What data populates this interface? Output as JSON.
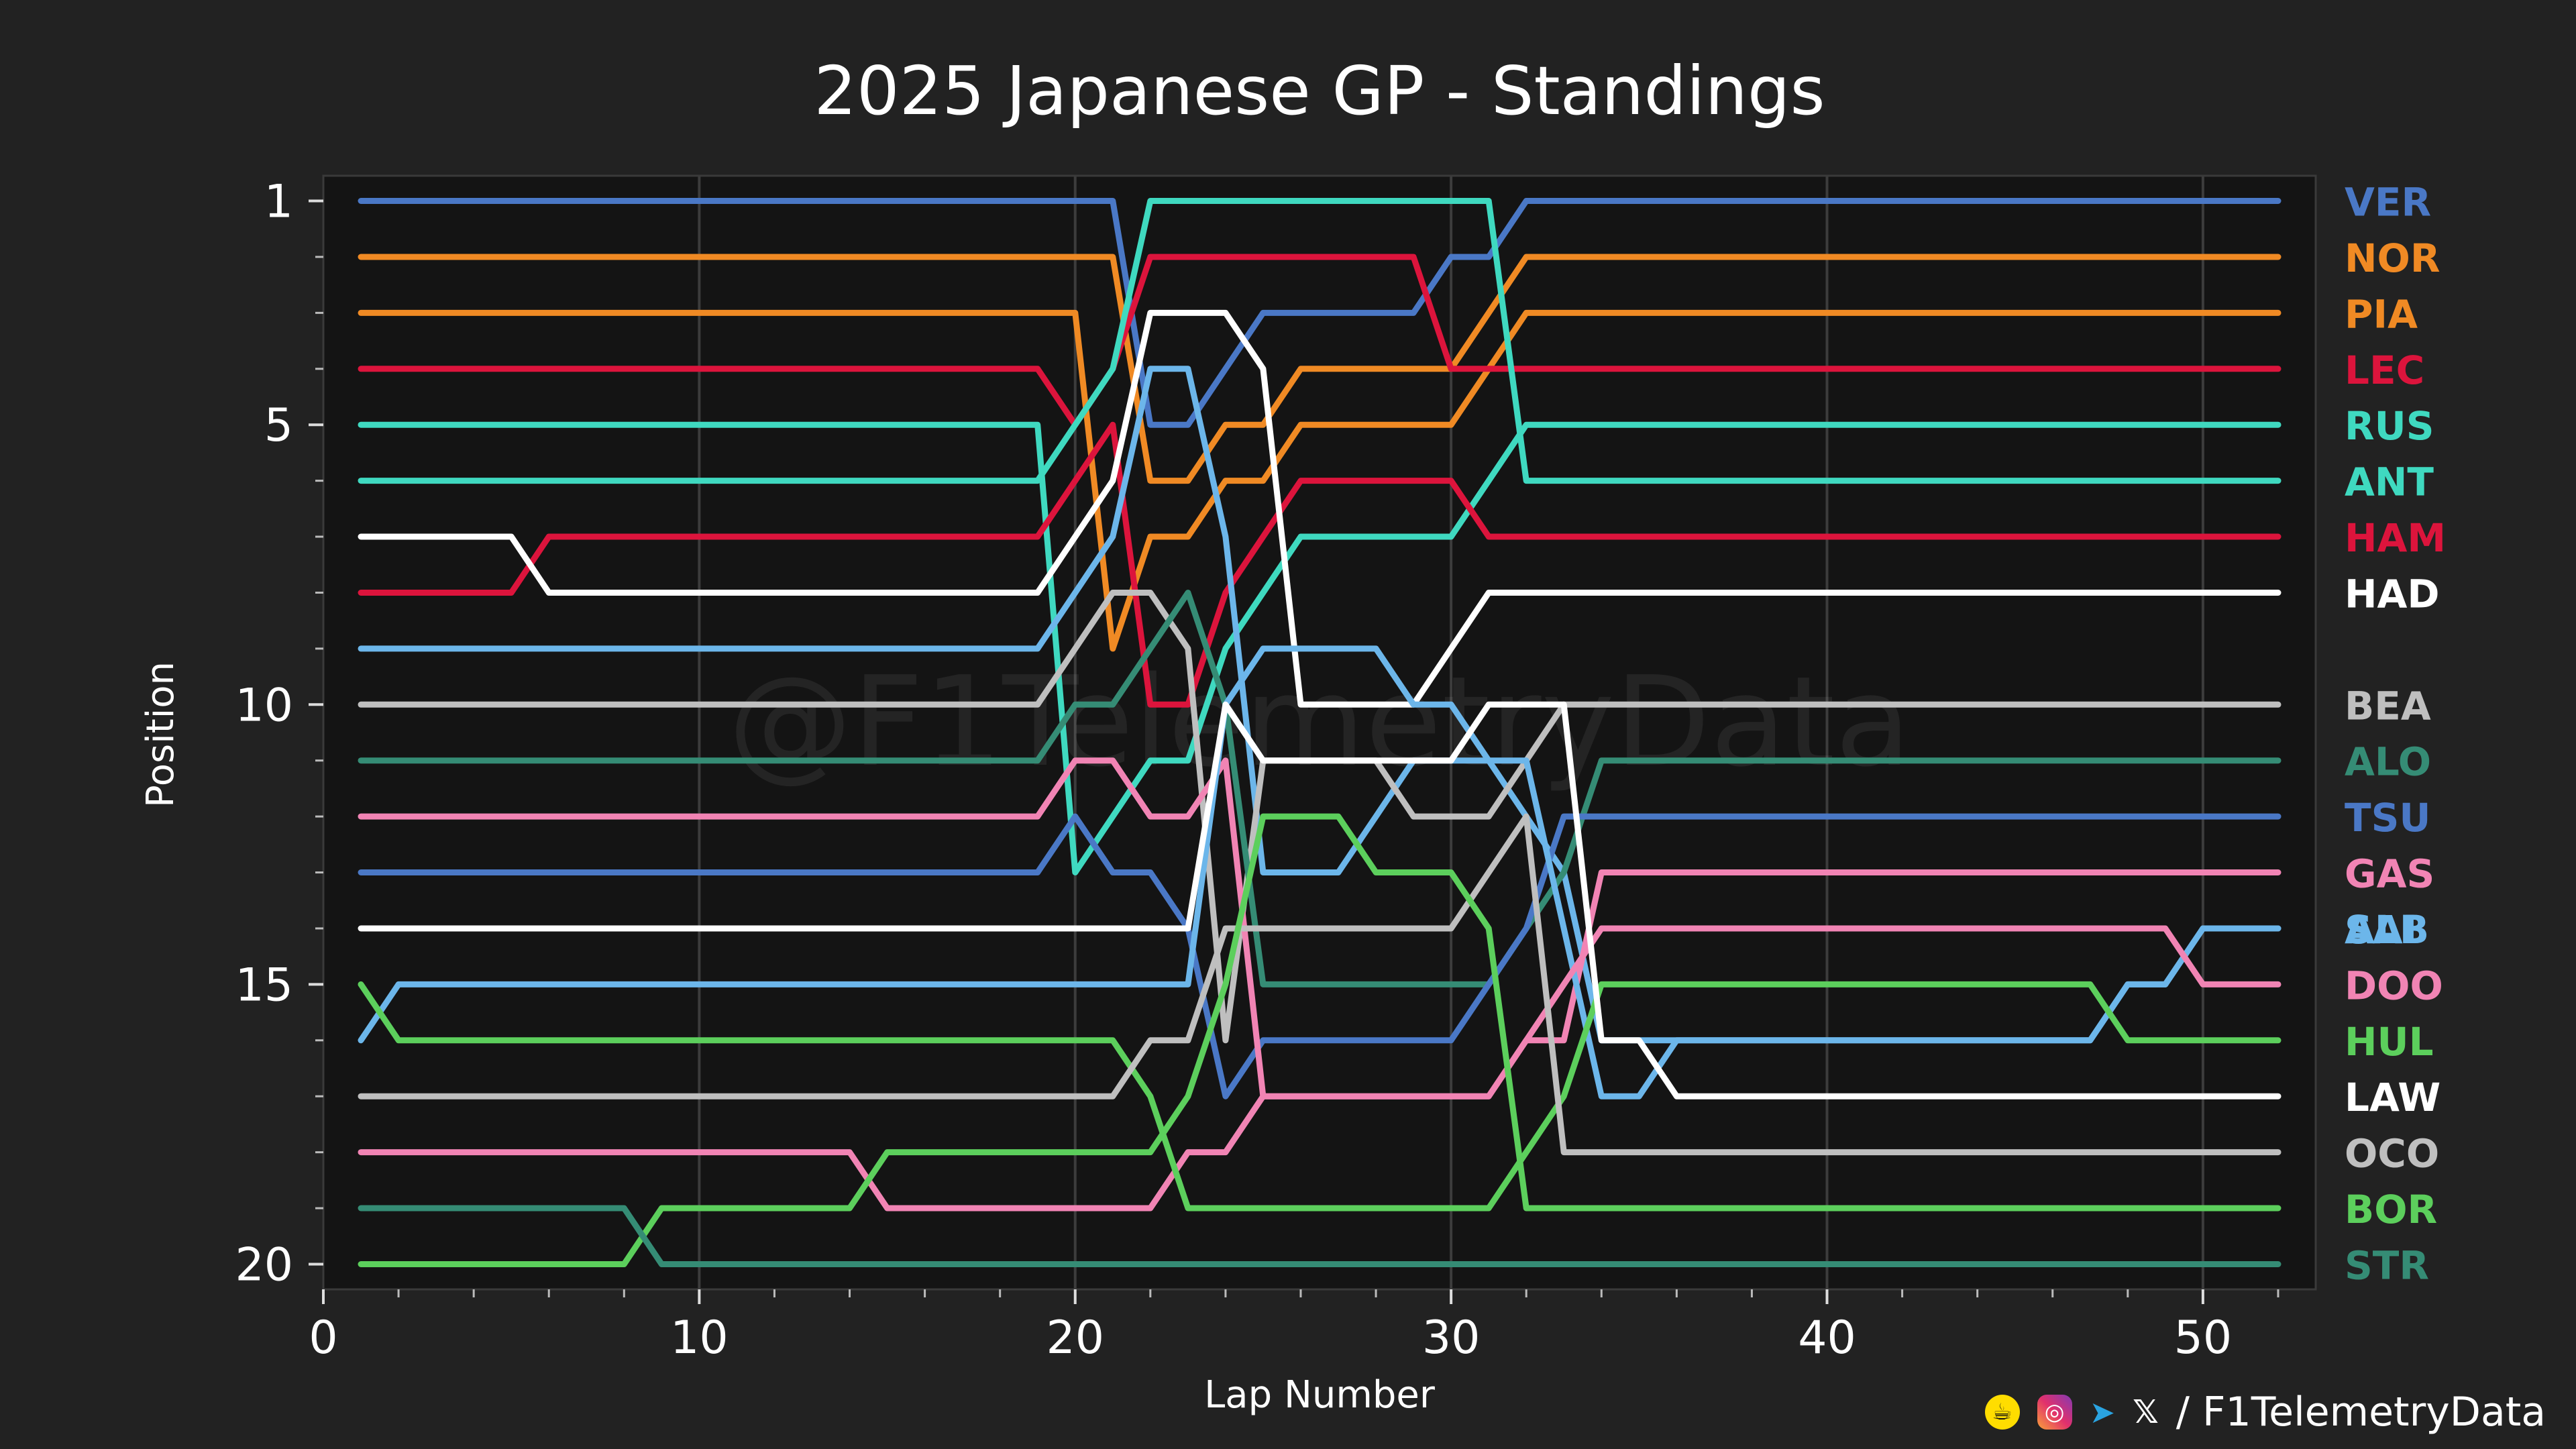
{
  "footer": {
    "handle": "/ F1TelemetryData",
    "icons": [
      "buymeacoffee-icon",
      "instagram-icon",
      "telegram-icon",
      "x-icon"
    ]
  },
  "chart_data": {
    "type": "line",
    "title": "2025 Japanese GP - Standings",
    "xlabel": "Lap Number",
    "ylabel": "Position",
    "watermark": "@F1TelemetryData",
    "xlim": [
      0,
      53
    ],
    "ylim": [
      20.45,
      0.55
    ],
    "x_ticks": [
      0,
      10,
      20,
      30,
      40,
      50
    ],
    "y_ticks": [
      1,
      5,
      10,
      15,
      20
    ],
    "grid": true,
    "background": "#141414",
    "laps": [
      1,
      2,
      3,
      4,
      5,
      6,
      7,
      8,
      9,
      10,
      11,
      12,
      13,
      14,
      15,
      16,
      17,
      18,
      19,
      20,
      21,
      22,
      23,
      24,
      25,
      26,
      27,
      28,
      29,
      30,
      31,
      32,
      33,
      34,
      35,
      36,
      37,
      38,
      39,
      40,
      41,
      42,
      43,
      44,
      45,
      46,
      47,
      48,
      49,
      50,
      51,
      52
    ],
    "series": [
      {
        "name": "VER",
        "color": "#4a78c6",
        "positions": [
          1,
          1,
          1,
          1,
          1,
          1,
          1,
          1,
          1,
          1,
          1,
          1,
          1,
          1,
          1,
          1,
          1,
          1,
          1,
          1,
          1,
          5,
          5,
          4,
          3,
          3,
          3,
          3,
          3,
          2,
          2,
          1,
          1,
          1,
          1,
          1,
          1,
          1,
          1,
          1,
          1,
          1,
          1,
          1,
          1,
          1,
          1,
          1,
          1,
          1,
          1,
          1
        ]
      },
      {
        "name": "NOR",
        "color": "#f08a24",
        "positions": [
          2,
          2,
          2,
          2,
          2,
          2,
          2,
          2,
          2,
          2,
          2,
          2,
          2,
          2,
          2,
          2,
          2,
          2,
          2,
          2,
          2,
          6,
          6,
          5,
          5,
          4,
          4,
          4,
          4,
          4,
          3,
          2,
          2,
          2,
          2,
          2,
          2,
          2,
          2,
          2,
          2,
          2,
          2,
          2,
          2,
          2,
          2,
          2,
          2,
          2,
          2,
          2
        ]
      },
      {
        "name": "PIA",
        "color": "#f08a24",
        "positions": [
          3,
          3,
          3,
          3,
          3,
          3,
          3,
          3,
          3,
          3,
          3,
          3,
          3,
          3,
          3,
          3,
          3,
          3,
          3,
          3,
          9,
          7,
          7,
          6,
          6,
          5,
          5,
          5,
          5,
          5,
          4,
          3,
          3,
          3,
          3,
          3,
          3,
          3,
          3,
          3,
          3,
          3,
          3,
          3,
          3,
          3,
          3,
          3,
          3,
          3,
          3,
          3
        ]
      },
      {
        "name": "LEC",
        "color": "#dc143c",
        "positions": [
          4,
          4,
          4,
          4,
          4,
          4,
          4,
          4,
          4,
          4,
          4,
          4,
          4,
          4,
          4,
          4,
          4,
          4,
          4,
          5,
          4,
          2,
          2,
          2,
          2,
          2,
          2,
          2,
          2,
          4,
          4,
          4,
          4,
          4,
          4,
          4,
          4,
          4,
          4,
          4,
          4,
          4,
          4,
          4,
          4,
          4,
          4,
          4,
          4,
          4,
          4,
          4
        ]
      },
      {
        "name": "RUS",
        "color": "#3fd9c0",
        "positions": [
          5,
          5,
          5,
          5,
          5,
          5,
          5,
          5,
          5,
          5,
          5,
          5,
          5,
          5,
          5,
          5,
          5,
          5,
          5,
          13,
          12,
          11,
          11,
          9,
          8,
          7,
          7,
          7,
          7,
          7,
          6,
          5,
          5,
          5,
          5,
          5,
          5,
          5,
          5,
          5,
          5,
          5,
          5,
          5,
          5,
          5,
          5,
          5,
          5,
          5,
          5,
          5
        ]
      },
      {
        "name": "ANT",
        "color": "#3fd9c0",
        "positions": [
          6,
          6,
          6,
          6,
          6,
          6,
          6,
          6,
          6,
          6,
          6,
          6,
          6,
          6,
          6,
          6,
          6,
          6,
          6,
          5,
          4,
          1,
          1,
          1,
          1,
          1,
          1,
          1,
          1,
          1,
          1,
          6,
          6,
          6,
          6,
          6,
          6,
          6,
          6,
          6,
          6,
          6,
          6,
          6,
          6,
          6,
          6,
          6,
          6,
          6,
          6,
          6
        ]
      },
      {
        "name": "HAM",
        "color": "#dc143c",
        "positions": [
          8,
          8,
          8,
          8,
          8,
          7,
          7,
          7,
          7,
          7,
          7,
          7,
          7,
          7,
          7,
          7,
          7,
          7,
          7,
          6,
          5,
          10,
          10,
          8,
          7,
          6,
          6,
          6,
          6,
          6,
          7,
          7,
          7,
          7,
          7,
          7,
          7,
          7,
          7,
          7,
          7,
          7,
          7,
          7,
          7,
          7,
          7,
          7,
          7,
          7,
          7,
          7
        ]
      },
      {
        "name": "HAD",
        "color": "#ffffff",
        "positions": [
          7,
          7,
          7,
          7,
          7,
          8,
          8,
          8,
          8,
          8,
          8,
          8,
          8,
          8,
          8,
          8,
          8,
          8,
          8,
          7,
          6,
          3,
          3,
          3,
          4,
          10,
          10,
          10,
          10,
          9,
          8,
          8,
          8,
          8,
          8,
          8,
          8,
          8,
          8,
          8,
          8,
          8,
          8,
          8,
          8,
          8,
          8,
          8,
          8,
          8,
          8,
          8
        ]
      },
      {
        "name": "ALB",
        "color": "#6cb6ea",
        "positions": [
          9,
          9,
          9,
          9,
          9,
          9,
          9,
          9,
          9,
          9,
          9,
          9,
          9,
          9,
          9,
          9,
          9,
          9,
          9,
          8,
          7,
          4,
          4,
          7,
          13,
          13,
          13,
          12,
          11,
          11,
          11,
          12,
          13,
          16,
          16,
          16,
          16,
          16,
          16,
          16,
          16,
          16,
          16,
          16,
          16,
          16,
          16,
          15,
          15,
          14,
          14,
          14
        ]
      },
      {
        "name": "BEA",
        "color": "#bfbfbf",
        "positions": [
          10,
          10,
          10,
          10,
          10,
          10,
          10,
          10,
          10,
          10,
          10,
          10,
          10,
          10,
          10,
          10,
          10,
          10,
          10,
          9,
          8,
          8,
          9,
          16,
          11,
          11,
          11,
          11,
          12,
          12,
          12,
          11,
          10,
          10,
          10,
          10,
          10,
          10,
          10,
          10,
          10,
          10,
          10,
          10,
          10,
          10,
          10,
          10,
          10,
          10,
          10,
          10
        ]
      },
      {
        "name": "ALO",
        "color": "#358c75",
        "positions": [
          11,
          11,
          11,
          11,
          11,
          11,
          11,
          11,
          11,
          11,
          11,
          11,
          11,
          11,
          11,
          11,
          11,
          11,
          11,
          10,
          10,
          9,
          8,
          10,
          15,
          15,
          15,
          15,
          15,
          15,
          15,
          14,
          13,
          11,
          11,
          11,
          11,
          11,
          11,
          11,
          11,
          11,
          11,
          11,
          11,
          11,
          11,
          11,
          11,
          11,
          11,
          11
        ]
      },
      {
        "name": "TSU",
        "color": "#4a78c6",
        "positions": [
          13,
          13,
          13,
          13,
          13,
          13,
          13,
          13,
          13,
          13,
          13,
          13,
          13,
          13,
          13,
          13,
          13,
          13,
          13,
          12,
          13,
          13,
          14,
          17,
          16,
          16,
          16,
          16,
          16,
          16,
          15,
          14,
          12,
          12,
          12,
          12,
          12,
          12,
          12,
          12,
          12,
          12,
          12,
          12,
          12,
          12,
          12,
          12,
          12,
          12,
          12,
          12
        ]
      },
      {
        "name": "GAS",
        "color": "#f184b4",
        "positions": [
          12,
          12,
          12,
          12,
          12,
          12,
          12,
          12,
          12,
          12,
          12,
          12,
          12,
          12,
          12,
          12,
          12,
          12,
          12,
          11,
          11,
          12,
          12,
          11,
          17,
          17,
          17,
          17,
          17,
          17,
          17,
          16,
          16,
          13,
          13,
          13,
          13,
          13,
          13,
          13,
          13,
          13,
          13,
          13,
          13,
          13,
          13,
          13,
          13,
          13,
          13,
          13
        ]
      },
      {
        "name": "SAI",
        "color": "#6cb6ea",
        "positions": [
          16,
          15,
          15,
          15,
          15,
          15,
          15,
          15,
          15,
          15,
          15,
          15,
          15,
          15,
          15,
          15,
          15,
          15,
          15,
          15,
          15,
          15,
          15,
          10,
          9,
          9,
          9,
          9,
          10,
          10,
          11,
          11,
          14,
          17,
          17,
          16,
          16,
          16,
          16,
          16,
          16,
          16,
          16,
          16,
          16,
          16,
          16,
          15,
          15,
          14,
          14,
          14
        ]
      },
      {
        "name": "DOO",
        "color": "#f184b4",
        "positions": [
          18,
          18,
          18,
          18,
          18,
          18,
          18,
          18,
          18,
          18,
          18,
          18,
          18,
          18,
          19,
          19,
          19,
          19,
          19,
          19,
          19,
          19,
          18,
          18,
          17,
          17,
          17,
          17,
          17,
          17,
          17,
          16,
          15,
          14,
          14,
          14,
          14,
          14,
          14,
          14,
          14,
          14,
          14,
          14,
          14,
          14,
          14,
          14,
          14,
          15,
          15,
          15
        ]
      },
      {
        "name": "HUL",
        "color": "#5ccf5c",
        "positions": [
          15,
          16,
          16,
          16,
          16,
          16,
          16,
          16,
          16,
          16,
          16,
          16,
          16,
          16,
          16,
          16,
          16,
          16,
          16,
          16,
          16,
          17,
          19,
          19,
          19,
          19,
          19,
          19,
          19,
          19,
          19,
          18,
          17,
          15,
          15,
          15,
          15,
          15,
          15,
          15,
          15,
          15,
          15,
          15,
          15,
          15,
          15,
          16,
          16,
          16,
          16,
          16
        ]
      },
      {
        "name": "LAW",
        "color": "#ffffff",
        "positions": [
          14,
          14,
          14,
          14,
          14,
          14,
          14,
          14,
          14,
          14,
          14,
          14,
          14,
          14,
          14,
          14,
          14,
          14,
          14,
          14,
          14,
          14,
          14,
          10,
          11,
          11,
          11,
          11,
          11,
          11,
          10,
          10,
          10,
          16,
          16,
          17,
          17,
          17,
          17,
          17,
          17,
          17,
          17,
          17,
          17,
          17,
          17,
          17,
          17,
          17,
          17,
          17
        ]
      },
      {
        "name": "OCO",
        "color": "#bfbfbf",
        "positions": [
          17,
          17,
          17,
          17,
          17,
          17,
          17,
          17,
          17,
          17,
          17,
          17,
          17,
          17,
          17,
          17,
          17,
          17,
          17,
          17,
          17,
          16,
          16,
          14,
          14,
          14,
          14,
          14,
          14,
          14,
          13,
          12,
          18,
          18,
          18,
          18,
          18,
          18,
          18,
          18,
          18,
          18,
          18,
          18,
          18,
          18,
          18,
          18,
          18,
          18,
          18,
          18
        ]
      },
      {
        "name": "BOR",
        "color": "#5ccf5c",
        "positions": [
          20,
          20,
          20,
          20,
          20,
          20,
          20,
          20,
          19,
          19,
          19,
          19,
          19,
          19,
          18,
          18,
          18,
          18,
          18,
          18,
          18,
          18,
          17,
          15,
          12,
          12,
          12,
          13,
          13,
          13,
          14,
          19,
          19,
          19,
          19,
          19,
          19,
          19,
          19,
          19,
          19,
          19,
          19,
          19,
          19,
          19,
          19,
          19,
          19,
          19,
          19,
          19
        ]
      },
      {
        "name": "STR",
        "color": "#358c75",
        "positions": [
          19,
          19,
          19,
          19,
          19,
          19,
          19,
          19,
          20,
          20,
          20,
          20,
          20,
          20,
          20,
          20,
          20,
          20,
          20,
          20,
          20,
          20,
          20,
          20,
          20,
          20,
          20,
          20,
          20,
          20,
          20,
          20,
          20,
          20,
          20,
          20,
          20,
          20,
          20,
          20,
          20,
          20,
          20,
          20,
          20,
          20,
          20,
          20,
          20,
          20,
          20,
          20
        ]
      }
    ]
  }
}
